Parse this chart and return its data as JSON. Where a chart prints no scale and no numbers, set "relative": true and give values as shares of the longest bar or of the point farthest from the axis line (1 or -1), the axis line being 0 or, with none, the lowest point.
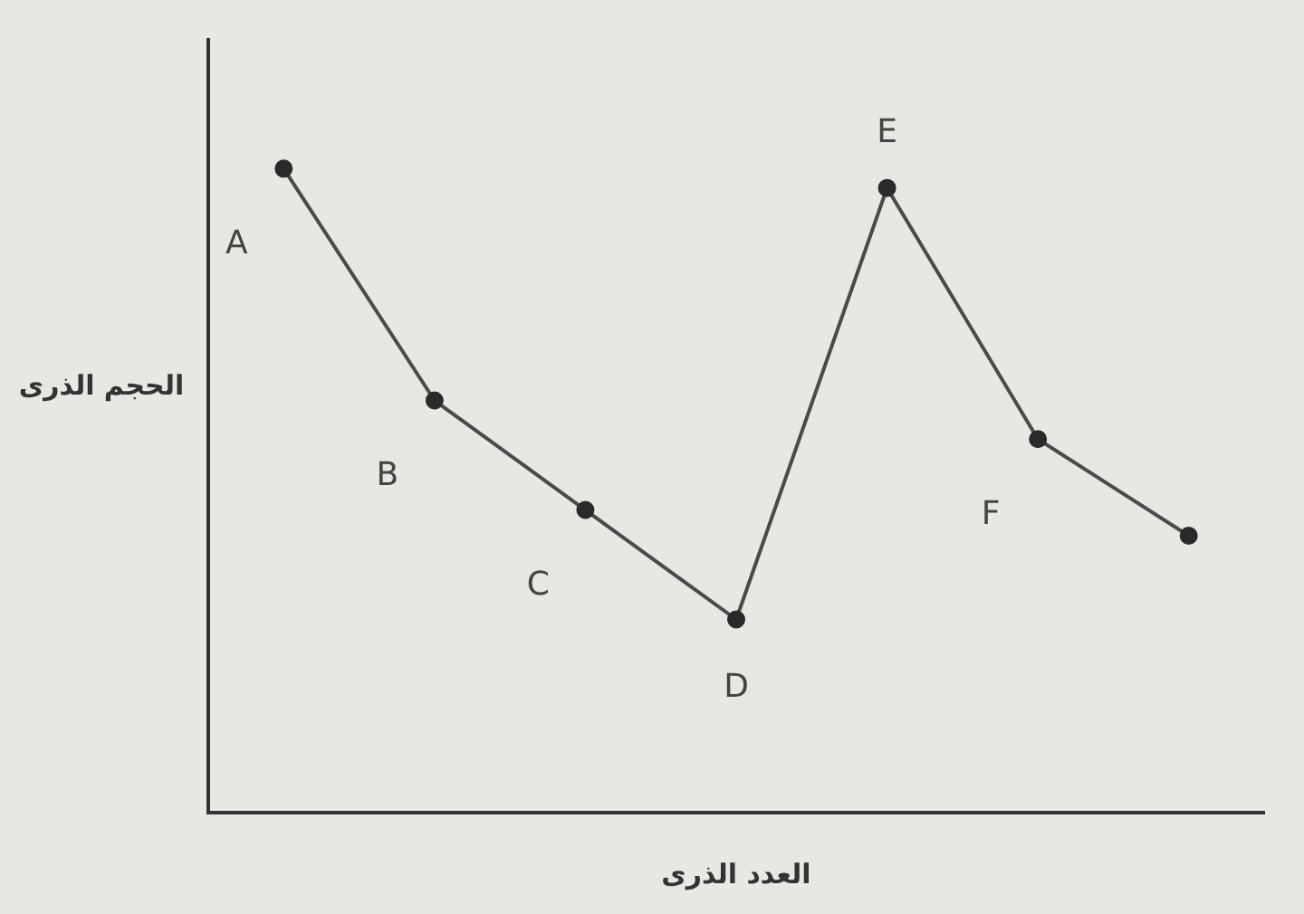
{
  "chart_data": {
    "type": "line",
    "xlabel": "العدد الذرى",
    "ylabel": "الحجم الذرى",
    "categories": [
      "A",
      "B",
      "C",
      "D",
      "E",
      "F",
      null
    ],
    "values": [
      1,
      0.64,
      0.47,
      0.3,
      0.97,
      0.58,
      0.43
    ],
    "color": "#4a4a4a",
    "relative": true,
    "marker": "circle",
    "line_style": "solid"
  }
}
